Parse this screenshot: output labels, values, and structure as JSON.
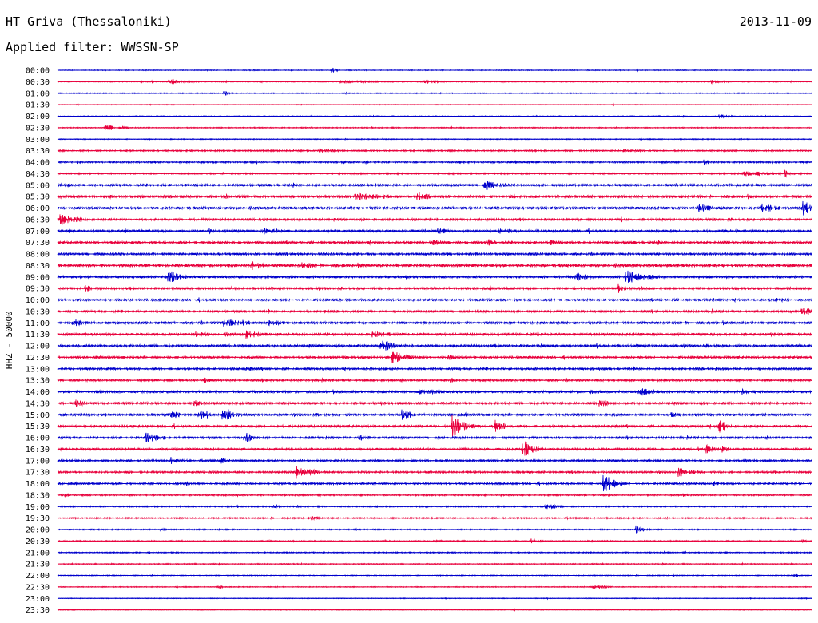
{
  "header": {
    "station": "HT Griva (Thessaloniki)",
    "date": "2013-11-09",
    "filter_label": "Applied filter:",
    "filter_value": "WWSSN-SP"
  },
  "chart_data": {
    "type": "line",
    "title": "HT Griva (Thessaloniki)",
    "ylabel": "HHZ - 50000",
    "xlabel": "",
    "grid": false,
    "categories": [
      "00:00",
      "00:30",
      "01:00",
      "01:30",
      "02:00",
      "02:30",
      "03:00",
      "03:30",
      "04:00",
      "04:30",
      "05:00",
      "05:30",
      "06:00",
      "06:30",
      "07:00",
      "07:30",
      "08:00",
      "08:30",
      "09:00",
      "09:30",
      "10:00",
      "10:30",
      "11:00",
      "11:30",
      "12:00",
      "12:30",
      "13:00",
      "13:30",
      "14:00",
      "14:30",
      "15:00",
      "15:30",
      "16:00",
      "16:30",
      "17:00",
      "17:30",
      "18:00",
      "18:30",
      "19:00",
      "19:30",
      "20:00",
      "20:30",
      "21:00",
      "21:30",
      "22:00",
      "22:30",
      "23:00",
      "23:30"
    ],
    "colors": [
      "#0000cc",
      "#e8003c"
    ],
    "x_range_minutes": [
      0,
      30
    ],
    "noise": [
      0.6,
      0.7,
      0.6,
      0.5,
      0.6,
      0.7,
      0.6,
      1.0,
      1.2,
      1.0,
      1.5,
      1.8,
      1.6,
      1.6,
      1.7,
      1.6,
      1.6,
      1.9,
      1.6,
      1.6,
      1.4,
      1.5,
      1.6,
      1.7,
      1.7,
      1.5,
      1.5,
      1.4,
      1.6,
      1.6,
      1.6,
      1.6,
      1.5,
      1.5,
      1.3,
      1.4,
      1.3,
      1.0,
      0.9,
      0.9,
      0.8,
      0.8,
      0.8,
      0.7,
      0.6,
      0.6,
      0.5,
      0.5
    ],
    "events": [
      [
        [
          10.9,
          4,
          0.5
        ]
      ],
      [
        [
          4.4,
          3,
          2
        ],
        [
          11.2,
          3,
          3
        ],
        [
          14.6,
          3,
          1.5
        ],
        [
          26.0,
          2.5,
          1.5
        ]
      ],
      [
        [
          6.6,
          4,
          0.5
        ]
      ],
      [],
      [
        [
          26.3,
          3,
          1
        ]
      ],
      [
        [
          1.9,
          5,
          1.5
        ]
      ],
      [],
      [
        [
          10.4,
          3,
          2
        ],
        [
          18.5,
          2,
          2
        ],
        [
          22.5,
          2,
          3
        ]
      ],
      [
        [
          0.8,
          3,
          0.5
        ],
        [
          25.7,
          5,
          0.8
        ]
      ],
      [
        [
          27.3,
          4,
          3
        ],
        [
          28.9,
          6,
          0.5
        ]
      ],
      [
        [
          0.1,
          6,
          0.8
        ],
        [
          16.9,
          8,
          1.5
        ]
      ],
      [
        [
          11.8,
          5,
          4
        ],
        [
          14.2,
          7,
          1.5
        ]
      ],
      [
        [
          25.5,
          6,
          2
        ],
        [
          28.0,
          7,
          1.5
        ],
        [
          29.6,
          12,
          1
        ]
      ],
      [
        [
          0.1,
          8,
          1.5
        ]
      ],
      [
        [
          6.0,
          4,
          1
        ],
        [
          8.1,
          7,
          1
        ],
        [
          15.1,
          5,
          1.2
        ],
        [
          17.5,
          4,
          2
        ]
      ],
      [
        [
          14.8,
          5,
          1.5
        ],
        [
          17.1,
          5,
          1
        ],
        [
          19.6,
          4,
          1
        ]
      ],
      [
        [
          9.4,
          4,
          0.5
        ],
        [
          15.5,
          5,
          0.5
        ]
      ],
      [
        [
          7.7,
          7,
          1
        ],
        [
          9.7,
          5,
          1.5
        ]
      ],
      [
        [
          4.4,
          10,
          1
        ],
        [
          20.6,
          6,
          1.5
        ],
        [
          22.6,
          9,
          2
        ]
      ],
      [
        [
          1.1,
          6,
          0.5
        ],
        [
          22.3,
          7,
          1
        ]
      ],
      [
        [
          0.8,
          3,
          0.5
        ],
        [
          28.6,
          3,
          1.5
        ]
      ],
      [
        [
          10.5,
          4,
          0.8
        ],
        [
          29.6,
          6,
          1.5
        ]
      ],
      [
        [
          0.6,
          7,
          0.7
        ],
        [
          6.6,
          7,
          1.5
        ],
        [
          7.3,
          6,
          1
        ],
        [
          8.4,
          5,
          1.5
        ]
      ],
      [
        [
          5.5,
          4,
          1.5
        ],
        [
          7.5,
          6,
          1.5
        ],
        [
          12.5,
          4,
          3
        ]
      ],
      [
        [
          12.8,
          12,
          1
        ],
        [
          19.2,
          3,
          0.5
        ]
      ],
      [
        [
          13.3,
          9,
          1.5
        ],
        [
          15.5,
          4,
          1.5
        ]
      ],
      [
        [
          7.5,
          3,
          1
        ],
        [
          19.8,
          3,
          1.5
        ]
      ],
      [
        [
          5.8,
          4,
          0.8
        ],
        [
          15.6,
          3,
          1.5
        ]
      ],
      [
        [
          14.4,
          4,
          3
        ],
        [
          23.1,
          6,
          1.5
        ],
        [
          27.2,
          4,
          1.5
        ]
      ],
      [
        [
          0.7,
          5,
          1
        ],
        [
          5.4,
          5,
          1
        ],
        [
          21.4,
          5,
          1.5
        ]
      ],
      [
        [
          4.4,
          9,
          0.8
        ],
        [
          5.6,
          8,
          0.8
        ],
        [
          6.5,
          12,
          1
        ],
        [
          13.7,
          8,
          0.8
        ],
        [
          24.4,
          4,
          1
        ]
      ],
      [
        [
          15.7,
          15,
          1
        ],
        [
          17.4,
          9,
          1
        ],
        [
          26.3,
          12,
          0.6
        ]
      ],
      [
        [
          3.5,
          7,
          1.5
        ],
        [
          7.5,
          7,
          1
        ],
        [
          12.0,
          5,
          1
        ]
      ],
      [
        [
          18.5,
          15,
          0.8
        ],
        [
          25.8,
          6,
          1
        ],
        [
          26.4,
          5,
          0.8
        ]
      ],
      [
        [
          4.5,
          5,
          0.8
        ],
        [
          6.5,
          4,
          1
        ]
      ],
      [
        [
          9.5,
          9,
          1.5
        ],
        [
          24.6,
          7,
          1.5
        ]
      ],
      [
        [
          5.1,
          3,
          0.5
        ],
        [
          21.7,
          14,
          1
        ],
        [
          26.1,
          4,
          0.5
        ]
      ],
      [
        [
          0.3,
          3,
          0.5
        ],
        [
          24.8,
          3,
          0.6
        ]
      ],
      [
        [
          8.6,
          4,
          0.4
        ],
        [
          19.4,
          5,
          1
        ]
      ],
      [
        [
          10.1,
          3,
          0.8
        ]
      ],
      [
        [
          4.1,
          3,
          0.5
        ],
        [
          23.0,
          6,
          0.6
        ]
      ],
      [
        [
          18.8,
          4,
          0.8
        ],
        [
          21.8,
          3,
          0.5
        ],
        [
          29.6,
          3,
          0.5
        ]
      ],
      [],
      [],
      [
        [
          29.3,
          3,
          0.4
        ]
      ],
      [
        [
          6.4,
          3,
          0.5
        ],
        [
          21.3,
          3,
          1.5
        ]
      ],
      [],
      []
    ]
  }
}
